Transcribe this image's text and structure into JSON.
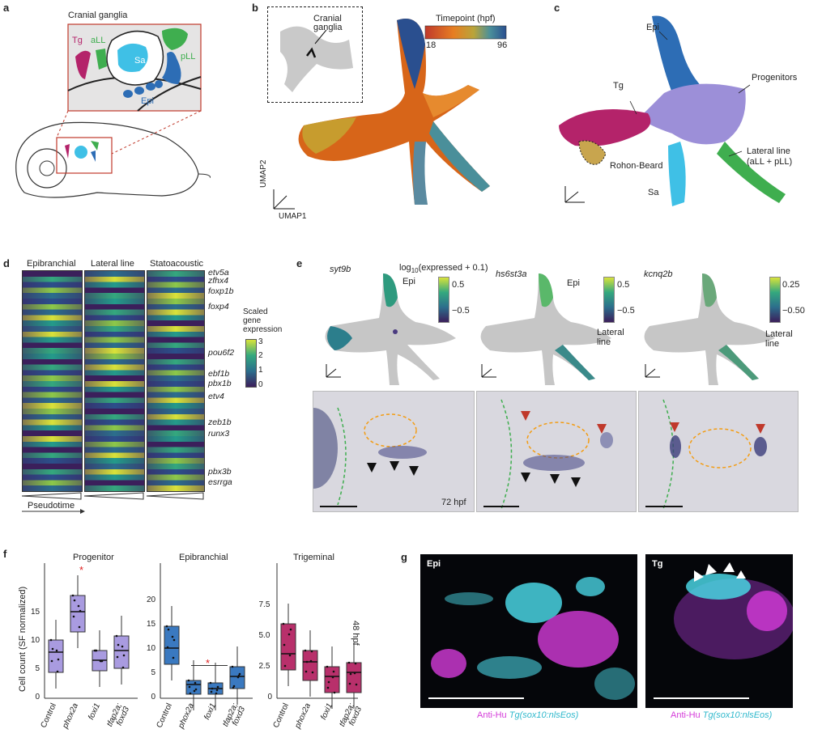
{
  "panels": {
    "a": {
      "letter": "a",
      "title": "Cranial ganglia",
      "labels": {
        "tg": "Tg",
        "all": "aLL",
        "sa": "Sa",
        "pll": "pLL",
        "epi": "Epi"
      }
    },
    "b": {
      "letter": "b",
      "inset_label": "Cranial\nganglia",
      "colorbar_title": "Timepoint (hpf)",
      "colorbar_min": "18",
      "colorbar_max": "96",
      "axis_y": "UMAP2",
      "axis_x": "UMAP1"
    },
    "c": {
      "letter": "c",
      "labels": {
        "epi": "Epi",
        "tg": "Tg",
        "progenitors": "Progenitors",
        "rohon": "Rohon-Beard",
        "lateral": "Lateral line",
        "lateral2": "(aLL + pLL)",
        "sa": "Sa"
      }
    },
    "d": {
      "letter": "d",
      "columns": [
        "Epibranchial",
        "Lateral line",
        "Statoacoustic"
      ],
      "genes": [
        "etv5a",
        "zfhx4",
        "foxp1b",
        "foxp4",
        "pou6f2",
        "ebf1b",
        "pbx1b",
        "etv4",
        "zeb1b",
        "runx3",
        "pbx3b",
        "esrrga"
      ],
      "scale_title": "Scaled\ngene\nexpression",
      "scale_ticks": [
        "3",
        "2",
        "1",
        "0"
      ],
      "xlabel": "Pseudotime"
    },
    "e": {
      "letter": "e",
      "expr_title": "log",
      "expr_sub": "10",
      "expr_rest": "(expressed + 0.1)",
      "genes": [
        "syt9b",
        "hs6st3a",
        "kcnq2b"
      ],
      "umap_labels": [
        "Epi",
        "Epi",
        "Lateral\nline",
        "Lateral\nline"
      ],
      "cbar1": [
        "0.5",
        "−0.5"
      ],
      "cbar2": [
        "0.5",
        "−0.5"
      ],
      "cbar3": [
        "0.25",
        "−0.50"
      ],
      "timepoint": "72 hpf"
    },
    "f": {
      "letter": "f",
      "ylabel": "Cell count (SF normalized)",
      "side_label": "48 hpf",
      "plots": [
        {
          "title": "Progenitor",
          "categories": [
            "Control",
            "phox2a",
            "foxi1",
            "tfap2a;\nfoxd3"
          ],
          "yticks": [
            "0",
            "5",
            "10",
            "15"
          ]
        },
        {
          "title": "Epibranchial",
          "categories": [
            "Control",
            "phox2a",
            "foxi1",
            "tfap2a;\nfoxd3"
          ],
          "yticks": [
            "0",
            "5",
            "10",
            "15",
            "20"
          ]
        },
        {
          "title": "Trigeminal",
          "categories": [
            "Control",
            "phox2a",
            "foxi1",
            "tfap2a;\nfoxd3"
          ],
          "yticks": [
            "0",
            "2.5",
            "5.0",
            "7.5"
          ]
        }
      ],
      "significance": "*"
    },
    "g": {
      "letter": "g",
      "left_label": "Epi",
      "right_label": "Tg",
      "caption_a": "Anti-Hu",
      "caption_b": "Tg(sox10:nlsEos)"
    }
  },
  "colors": {
    "tg": "#b4236a",
    "epi": "#2d6db5",
    "lateral": "#3fae4f",
    "sa": "#3fc0e6",
    "progenitors": "#9c8fd8",
    "rohon": "#c8a54e",
    "progenitor_box": "#a99be0",
    "epi_box": "#3a79c0",
    "tg_box": "#b8306b",
    "magenta": "#d43bd9",
    "cyan": "#49d3e2"
  }
}
